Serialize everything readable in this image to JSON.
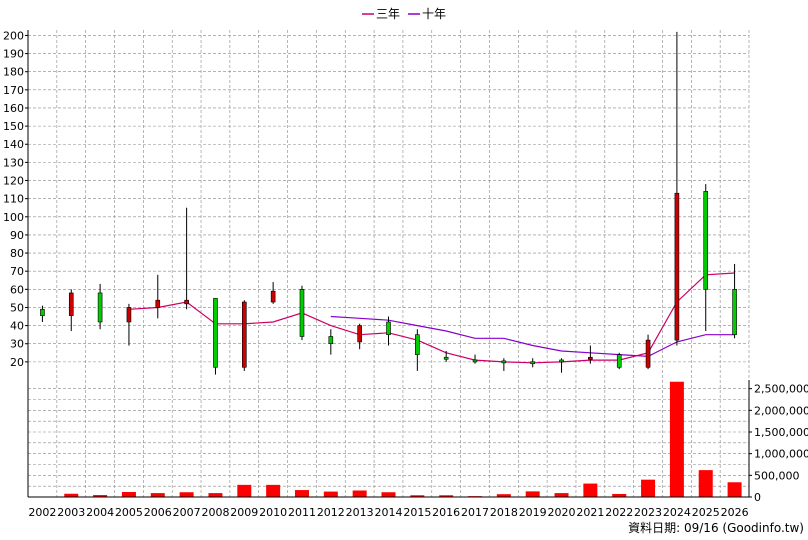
{
  "chart_data": {
    "type": "candlestick",
    "legend": {
      "position": "top-center",
      "items": [
        {
          "label": "三年",
          "color": "#cc0066"
        },
        {
          "label": "十年",
          "color": "#8800cc"
        }
      ]
    },
    "colors": {
      "up": "#00cc00",
      "down": "#cc0000",
      "wick": "#000000",
      "volume": "#ff0000",
      "grid": "#888888"
    },
    "grid": true,
    "years": [
      "2002",
      "2003",
      "2004",
      "2005",
      "2006",
      "2007",
      "2008",
      "2009",
      "2010",
      "2011",
      "2012",
      "2013",
      "2014",
      "2015",
      "2016",
      "2017",
      "2018",
      "2019",
      "2020",
      "2021",
      "2022",
      "2023",
      "2024",
      "2025",
      "2026"
    ],
    "price_axis": {
      "ylim": [
        10,
        203
      ],
      "ticks": [
        20,
        30,
        40,
        50,
        60,
        70,
        80,
        90,
        100,
        110,
        120,
        130,
        140,
        150,
        160,
        170,
        180,
        190,
        200
      ],
      "tick_labels": [
        "20",
        "30",
        "40",
        "50",
        "60",
        "70",
        "80",
        "90",
        "100",
        "110",
        "120",
        "130",
        "140",
        "150",
        "160",
        "170",
        "180",
        "190",
        "200"
      ]
    },
    "candles": [
      {
        "year": "2002",
        "open": 45.5,
        "close": 49,
        "high": 51,
        "low": 42
      },
      {
        "year": "2003",
        "open": 58,
        "close": 45.5,
        "high": 60,
        "low": 37
      },
      {
        "year": "2004",
        "open": 42,
        "close": 58,
        "high": 63,
        "low": 38
      },
      {
        "year": "2005",
        "open": 50,
        "close": 42,
        "high": 52,
        "low": 29
      },
      {
        "year": "2006",
        "open": 54,
        "close": 50,
        "high": 68,
        "low": 44
      },
      {
        "year": "2007",
        "open": 54,
        "close": 52,
        "high": 105,
        "low": 49
      },
      {
        "year": "2008",
        "open": 17,
        "close": 55,
        "high": 55,
        "low": 13
      },
      {
        "year": "2009",
        "open": 53,
        "close": 17,
        "high": 54,
        "low": 15
      },
      {
        "year": "2010",
        "open": 59,
        "close": 53,
        "high": 64,
        "low": 52
      },
      {
        "year": "2011",
        "open": 34,
        "close": 60,
        "high": 62,
        "low": 32
      },
      {
        "year": "2012",
        "open": 30,
        "close": 34,
        "high": 38,
        "low": 24
      },
      {
        "year": "2013",
        "open": 40,
        "close": 31,
        "high": 41,
        "low": 27
      },
      {
        "year": "2014",
        "open": 35,
        "close": 42,
        "high": 45,
        "low": 29
      },
      {
        "year": "2015",
        "open": 24,
        "close": 35,
        "high": 38,
        "low": 15
      },
      {
        "year": "2016",
        "open": 22,
        "close": 22,
        "high": 26,
        "low": 20
      },
      {
        "year": "2017",
        "open": 20.5,
        "close": 20.5,
        "high": 24,
        "low": 19
      },
      {
        "year": "2018",
        "open": 20,
        "close": 20,
        "high": 22,
        "low": 15
      },
      {
        "year": "2019",
        "open": 19.5,
        "close": 19.5,
        "high": 22,
        "low": 17
      },
      {
        "year": "2020",
        "open": 20.5,
        "close": 20.5,
        "high": 22,
        "low": 14
      },
      {
        "year": "2021",
        "open": 22,
        "close": 21,
        "high": 29,
        "low": 19
      },
      {
        "year": "2022",
        "open": 17,
        "close": 24,
        "high": 25,
        "low": 16
      },
      {
        "year": "2023",
        "open": 32,
        "close": 17,
        "high": 35,
        "low": 16
      },
      {
        "year": "2024",
        "open": 113,
        "close": 32,
        "high": 202,
        "low": 29
      },
      {
        "year": "2025",
        "open": 60,
        "close": 114,
        "high": 118,
        "low": 37
      },
      {
        "year": "2026",
        "open": 35,
        "close": 60,
        "high": 74,
        "low": 33
      }
    ],
    "series": [
      {
        "name": "三年",
        "color": "#cc0066",
        "values": [
          null,
          null,
          null,
          49,
          50,
          53,
          41,
          41,
          42,
          47,
          40,
          35,
          36,
          32,
          25,
          21,
          20,
          19.5,
          20,
          21,
          21,
          25,
          53,
          68,
          69
        ]
      },
      {
        "name": "十年",
        "color": "#8800cc",
        "values": [
          null,
          null,
          null,
          null,
          null,
          null,
          null,
          null,
          null,
          null,
          45,
          44,
          43,
          40,
          37,
          33,
          33,
          29,
          26,
          25,
          24,
          23,
          31,
          35,
          35
        ]
      }
    ],
    "volume_axis": {
      "ylim": [
        0,
        2700000
      ],
      "ticks": [
        0,
        500000,
        1000000,
        1500000,
        2000000,
        2500000
      ],
      "tick_labels": [
        "0",
        "500,000",
        "1,000,000",
        "1,500,000",
        "2,000,000",
        "2,500,000"
      ]
    },
    "volumes": [
      8000,
      75000,
      45000,
      115000,
      90000,
      110000,
      90000,
      280000,
      280000,
      160000,
      125000,
      150000,
      110000,
      40000,
      40000,
      20000,
      65000,
      130000,
      90000,
      310000,
      70000,
      400000,
      2660000,
      620000,
      340000
    ]
  },
  "footer": {
    "source_text": "資料日期: 09/16 (Goodinfo.tw)"
  }
}
